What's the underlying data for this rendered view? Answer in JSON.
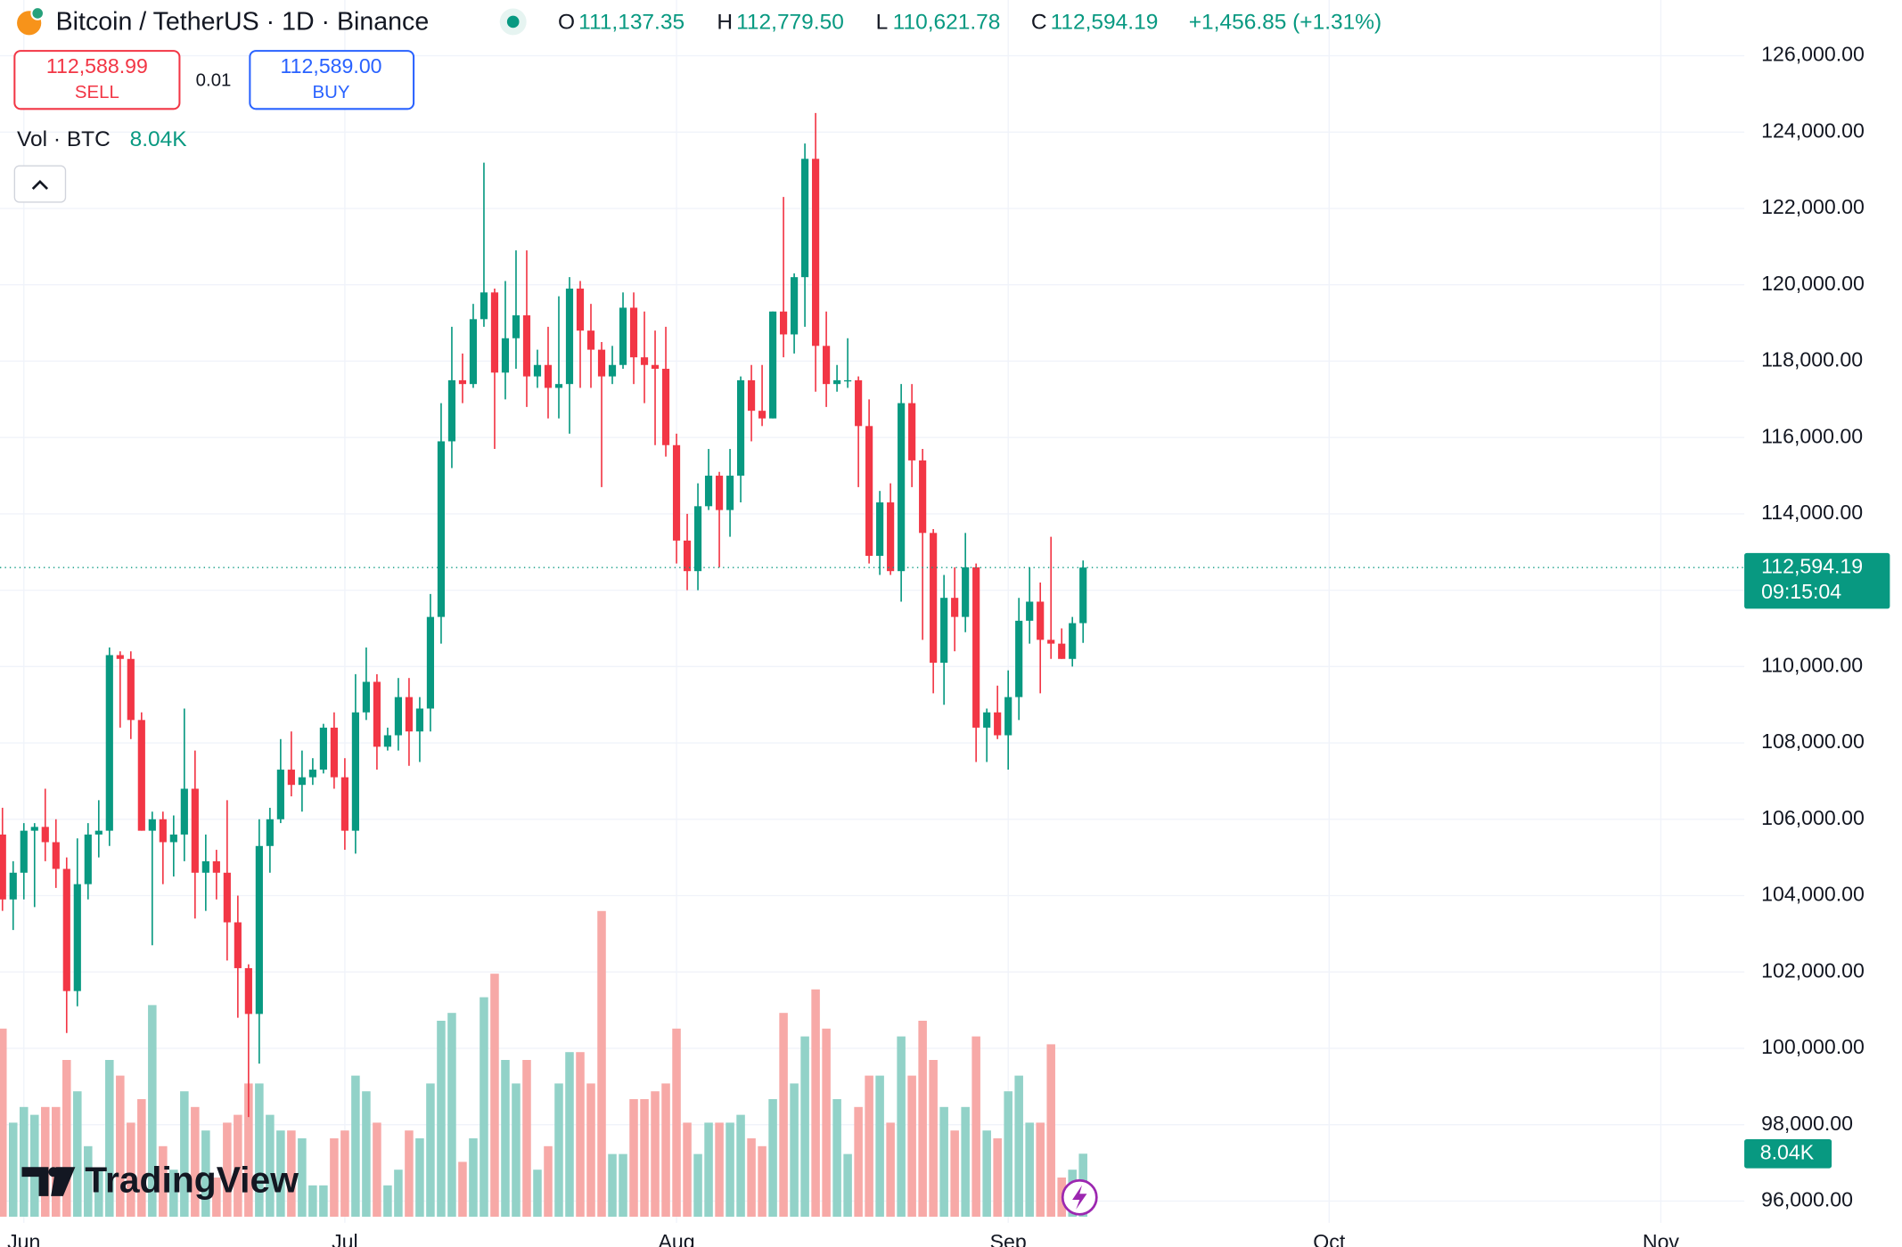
{
  "chart_data": {
    "type": "candlestick",
    "header": {
      "symbol": "Bitcoin / TetherUS · 1D · Binance",
      "ohlc": [
        {
          "key": "O",
          "value": "111,137.35"
        },
        {
          "key": "H",
          "value": "112,779.50"
        },
        {
          "key": "L",
          "value": "110,621.78"
        },
        {
          "key": "C",
          "value": "112,594.19"
        }
      ],
      "change": "+1,456.85 (+1.31%)"
    },
    "trade": {
      "sell_price": "112,588.99",
      "sell": "SELL",
      "spread": "0.01",
      "buy_price": "112,589.00",
      "buy": "BUY"
    },
    "volume_legend": "Vol · BTC",
    "volume_last_label": "8.04K",
    "last_price_label": "112,594.19",
    "countdown": "09:15:04",
    "logo": "TradingView",
    "up_color": "#089981",
    "down_color": "#f23645",
    "volume_up_color": "#92d2c8",
    "volume_down_color": "#f7a9a7",
    "grid": true,
    "xlim": [
      -0.23,
      162.8
    ],
    "xticks": [
      {
        "value": 2,
        "label": "Jun"
      },
      {
        "value": 32,
        "label": "Jul"
      },
      {
        "value": 63,
        "label": "Aug"
      },
      {
        "value": 94,
        "label": "Sep"
      },
      {
        "value": 124,
        "label": "Oct"
      },
      {
        "value": 155,
        "label": "Nov"
      }
    ],
    "ylim": [
      95430,
      127460
    ],
    "yticks": [
      {
        "value": 96000,
        "label": "96,000.00"
      },
      {
        "value": 98000,
        "label": "98,000.00"
      },
      {
        "value": 100000,
        "label": "100,000.00"
      },
      {
        "value": 102000,
        "label": "102,000.00"
      },
      {
        "value": 104000,
        "label": "104,000.00"
      },
      {
        "value": 106000,
        "label": "106,000.00"
      },
      {
        "value": 108000,
        "label": "108,000.00"
      },
      {
        "value": 110000,
        "label": "110,000.00"
      },
      {
        "value": 112000,
        "label": "112,000.00"
      },
      {
        "value": 114000,
        "label": "114,000.00"
      },
      {
        "value": 116000,
        "label": "116,000.00"
      },
      {
        "value": 118000,
        "label": "118,000.00"
      },
      {
        "value": 120000,
        "label": "120,000.00"
      },
      {
        "value": 122000,
        "label": "122,000.00"
      },
      {
        "value": 124000,
        "label": "124,000.00"
      },
      {
        "value": 126000,
        "label": "126,000.00"
      }
    ],
    "volume_ylim": [
      0,
      40
    ],
    "candles": [
      [
        105600,
        106300,
        103600,
        103900
      ],
      [
        103900,
        104900,
        103100,
        104600
      ],
      [
        104600,
        105900,
        103900,
        105700
      ],
      [
        105700,
        105900,
        103700,
        105800
      ],
      [
        105800,
        106800,
        104900,
        105400
      ],
      [
        105400,
        106000,
        104200,
        104700
      ],
      [
        104700,
        105000,
        100400,
        101500
      ],
      [
        101500,
        105500,
        101100,
        104300
      ],
      [
        104300,
        105900,
        103900,
        105600
      ],
      [
        105600,
        106500,
        105000,
        105700
      ],
      [
        105700,
        110500,
        105300,
        110300
      ],
      [
        110300,
        110400,
        108400,
        110200
      ],
      [
        110200,
        110400,
        108100,
        108600
      ],
      [
        108600,
        108800,
        105700,
        105700
      ],
      [
        105700,
        106200,
        102700,
        106000
      ],
      [
        106000,
        106200,
        104300,
        105400
      ],
      [
        105400,
        106100,
        104500,
        105600
      ],
      [
        105600,
        108900,
        104900,
        106800
      ],
      [
        106800,
        107800,
        103400,
        104600
      ],
      [
        104600,
        105600,
        103600,
        104900
      ],
      [
        104900,
        105200,
        103900,
        104600
      ],
      [
        104600,
        106500,
        102300,
        103300
      ],
      [
        103300,
        104000,
        100800,
        102100
      ],
      [
        102100,
        102200,
        98200,
        100900
      ],
      [
        100900,
        106000,
        99600,
        105300
      ],
      [
        105300,
        106300,
        104600,
        106000
      ],
      [
        106000,
        108100,
        105900,
        107300
      ],
      [
        107300,
        108300,
        106600,
        106900
      ],
      [
        106900,
        107800,
        106200,
        107100
      ],
      [
        107100,
        107600,
        106900,
        107300
      ],
      [
        107300,
        108500,
        107200,
        108400
      ],
      [
        108400,
        108800,
        106800,
        107100
      ],
      [
        107100,
        107600,
        105200,
        105700
      ],
      [
        105700,
        109800,
        105100,
        108800
      ],
      [
        108800,
        110500,
        108600,
        109600
      ],
      [
        109600,
        109800,
        107300,
        107900
      ],
      [
        107900,
        108400,
        107800,
        108200
      ],
      [
        108200,
        109700,
        107800,
        109200
      ],
      [
        109200,
        109700,
        107400,
        108300
      ],
      [
        108300,
        109200,
        107500,
        108900
      ],
      [
        108900,
        111900,
        108300,
        111300
      ],
      [
        111300,
        116900,
        110600,
        115900
      ],
      [
        115900,
        118900,
        115200,
        117500
      ],
      [
        117500,
        118200,
        116900,
        117400
      ],
      [
        117400,
        119500,
        117300,
        119100
      ],
      [
        119100,
        123200,
        118900,
        119800
      ],
      [
        119800,
        119900,
        115700,
        117700
      ],
      [
        117700,
        120100,
        117000,
        118600
      ],
      [
        118600,
        120900,
        117800,
        119200
      ],
      [
        119200,
        120900,
        116800,
        117600
      ],
      [
        117600,
        118300,
        117300,
        117900
      ],
      [
        117900,
        118900,
        116500,
        117300
      ],
      [
        117300,
        119700,
        116500,
        117400
      ],
      [
        117400,
        120200,
        116100,
        119900
      ],
      [
        119900,
        120100,
        117300,
        118800
      ],
      [
        118800,
        119500,
        117300,
        118300
      ],
      [
        118300,
        118500,
        114700,
        117600
      ],
      [
        117600,
        118400,
        117400,
        117900
      ],
      [
        117900,
        119800,
        117800,
        119400
      ],
      [
        119400,
        119800,
        117400,
        118100
      ],
      [
        118100,
        119300,
        116900,
        117900
      ],
      [
        117900,
        118800,
        115800,
        117800
      ],
      [
        117800,
        118900,
        115500,
        115800
      ],
      [
        115800,
        116100,
        112700,
        113300
      ],
      [
        113300,
        114000,
        112000,
        112500
      ],
      [
        112500,
        114800,
        112000,
        114200
      ],
      [
        114200,
        115700,
        114100,
        115000
      ],
      [
        115000,
        115100,
        112600,
        114100
      ],
      [
        114100,
        115700,
        113400,
        115000
      ],
      [
        115000,
        117600,
        114300,
        117500
      ],
      [
        117500,
        117900,
        115900,
        116700
      ],
      [
        116700,
        117900,
        116300,
        116500
      ],
      [
        116500,
        119300,
        116500,
        119300
      ],
      [
        119300,
        122300,
        118100,
        118700
      ],
      [
        118700,
        120300,
        118200,
        120200
      ],
      [
        120200,
        123700,
        118900,
        123300
      ],
      [
        123300,
        124500,
        117200,
        118400
      ],
      [
        118400,
        119300,
        116800,
        117400
      ],
      [
        117400,
        117900,
        117200,
        117500
      ],
      [
        117500,
        118600,
        117300,
        117500
      ],
      [
        117500,
        117600,
        114700,
        116300
      ],
      [
        116300,
        117000,
        112700,
        112900
      ],
      [
        112900,
        114600,
        112400,
        114300
      ],
      [
        114300,
        114800,
        112400,
        112500
      ],
      [
        112500,
        117400,
        111700,
        116900
      ],
      [
        116900,
        117400,
        114700,
        115400
      ],
      [
        115400,
        115700,
        110700,
        113500
      ],
      [
        113500,
        113600,
        109300,
        110100
      ],
      [
        110100,
        112400,
        109000,
        111800
      ],
      [
        111800,
        112600,
        110400,
        111300
      ],
      [
        111300,
        113500,
        110900,
        112600
      ],
      [
        112600,
        112700,
        107500,
        108400
      ],
      [
        108400,
        108900,
        107500,
        108800
      ],
      [
        108800,
        109500,
        108100,
        108200
      ],
      [
        108200,
        109900,
        107300,
        109200
      ],
      [
        109200,
        111800,
        108600,
        111200
      ],
      [
        111200,
        112600,
        110600,
        111700
      ],
      [
        111700,
        112200,
        109300,
        110700
      ],
      [
        110700,
        113400,
        110200,
        110600
      ],
      [
        110600,
        111000,
        110200,
        110200
      ],
      [
        110200,
        111300,
        110000,
        111137.35
      ],
      [
        111137.35,
        112779.5,
        110621.78,
        112594.19
      ]
    ],
    "volume": [
      24,
      12,
      14,
      13,
      14,
      14,
      20,
      16,
      9,
      6,
      20,
      18,
      12,
      15,
      27,
      9,
      6,
      16,
      14,
      11,
      5,
      12,
      13,
      17,
      17,
      13,
      11,
      11,
      10,
      4,
      4,
      10,
      11,
      18,
      16,
      12,
      4,
      6,
      11,
      10,
      17,
      25,
      26,
      7,
      10,
      28,
      31,
      20,
      17,
      20,
      6,
      9,
      17,
      21,
      21,
      17,
      39,
      8,
      8,
      15,
      15,
      16,
      17,
      24,
      12,
      8,
      12,
      12,
      12,
      13,
      10,
      9,
      15,
      26,
      17,
      23,
      29,
      24,
      15,
      8,
      14,
      18,
      18,
      12,
      23,
      18,
      25,
      20,
      14,
      11,
      14,
      23,
      11,
      10,
      16,
      18,
      12,
      12,
      22,
      5,
      6,
      8.04
    ]
  }
}
